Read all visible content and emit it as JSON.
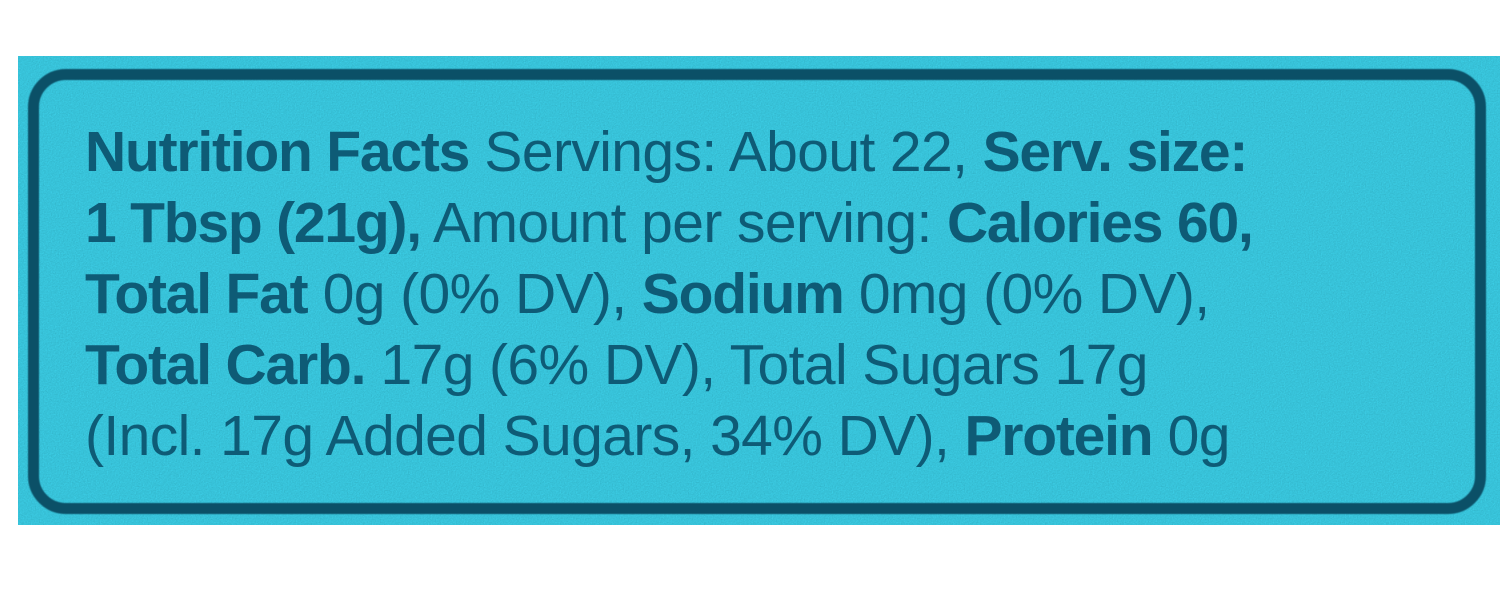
{
  "photo": {
    "background_color": "#3ccee6",
    "ink_color": "#0e5b76",
    "border_color": "#0b5067"
  },
  "nutrition_label": {
    "title": "Nutrition Facts",
    "servings": "About 22",
    "serving_size": "1 Tbsp (21g)",
    "calories": "60",
    "total_fat": "0g (0% DV)",
    "sodium": "0mg (0% DV)",
    "total_carb": "17g (6% DV)",
    "total_sugars": "17g",
    "added_sugars": "Incl. 17g Added Sugars, 34% DV",
    "protein": "0g",
    "lines": [
      {
        "segments": [
          {
            "text": "Nutrition Facts",
            "bold": true
          },
          {
            "text": " Servings: About 22, ",
            "bold": false
          },
          {
            "text": "Serv. size:",
            "bold": true
          }
        ]
      },
      {
        "segments": [
          {
            "text": "1 Tbsp (21g),",
            "bold": true
          },
          {
            "text": " Amount per serving: ",
            "bold": false
          },
          {
            "text": "Calories 60,",
            "bold": true
          }
        ]
      },
      {
        "segments": [
          {
            "text": "Total Fat",
            "bold": true
          },
          {
            "text": " 0g (0% DV), ",
            "bold": false
          },
          {
            "text": "Sodium",
            "bold": true
          },
          {
            "text": " 0mg (0% DV),",
            "bold": false
          }
        ]
      },
      {
        "segments": [
          {
            "text": "Total Carb.",
            "bold": true
          },
          {
            "text": " 17g (6% DV), Total Sugars 17g",
            "bold": false
          }
        ]
      },
      {
        "segments": [
          {
            "text": "(Incl. 17g Added Sugars, 34% DV), ",
            "bold": false
          },
          {
            "text": "Protein",
            "bold": true
          },
          {
            "text": " 0g",
            "bold": false
          }
        ]
      }
    ]
  }
}
